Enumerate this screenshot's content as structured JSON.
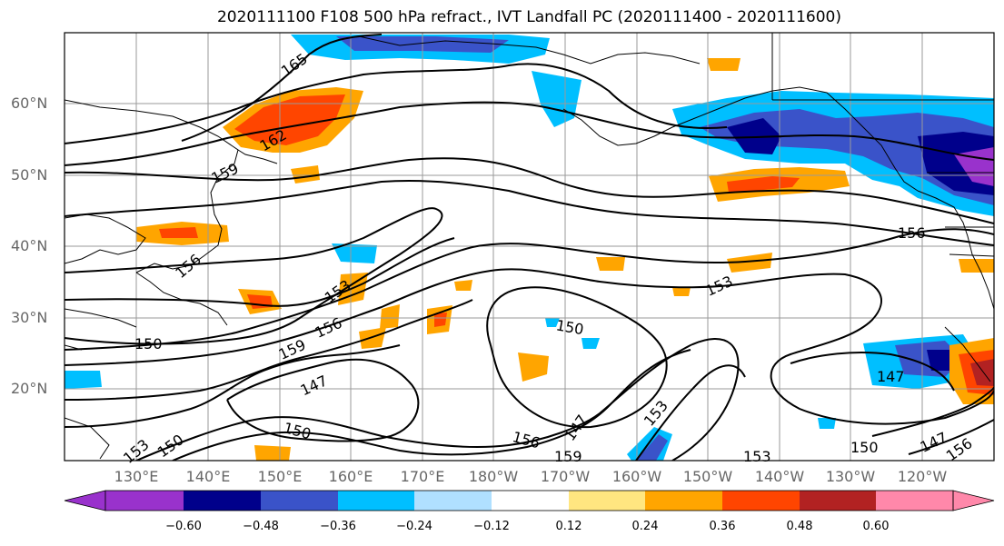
{
  "title": "2020111100 F108 500 hPa refract., IVT Landfall PC (2020111400 - 2020111600)",
  "lat_labels": [
    "60°N",
    "50°N",
    "40°N",
    "30°N",
    "20°N"
  ],
  "lon_labels": [
    "130°E",
    "140°E",
    "150°E",
    "160°E",
    "170°E",
    "180°W",
    "170°W",
    "160°W",
    "150°W",
    "140°W",
    "130°W",
    "120°W"
  ],
  "contour_labels": [
    "165",
    "162",
    "159",
    "156",
    "153",
    "150",
    "147",
    "159",
    "156",
    "153",
    "150",
    "147",
    "153",
    "156",
    "150",
    "153",
    "156",
    "147",
    "159",
    "153",
    "150",
    "147",
    "156",
    "150"
  ],
  "colorbar": {
    "ticks": [
      "−0.60",
      "−0.48",
      "−0.36",
      "−0.24",
      "−0.12",
      "0.12",
      "0.24",
      "0.36",
      "0.48",
      "0.60"
    ],
    "colors": [
      "#9932cc",
      "#00008b",
      "#3a53c9",
      "#00bfff",
      "#b0e0ff",
      "#ffffff",
      "#ffe680",
      "#ffa500",
      "#ff4500",
      "#b22222",
      "#ff88aa"
    ]
  }
}
